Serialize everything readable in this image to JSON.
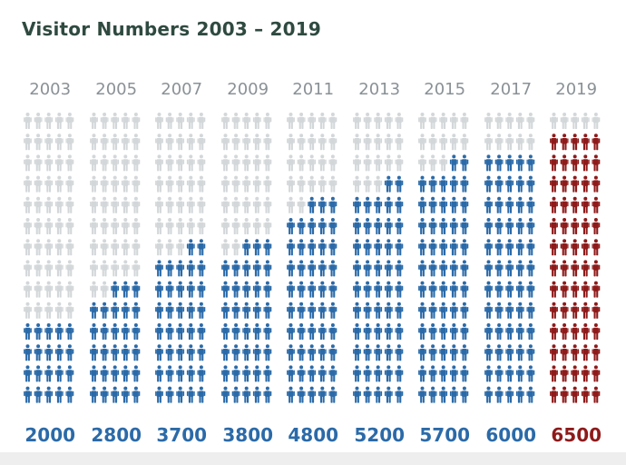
{
  "chart_data": {
    "type": "pictograph",
    "title": "Visitor Numbers 2003 – 2019",
    "categories": [
      "2003",
      "2005",
      "2007",
      "2009",
      "2011",
      "2013",
      "2015",
      "2017",
      "2019"
    ],
    "values": [
      2000,
      2800,
      3700,
      3800,
      4800,
      5200,
      5700,
      6000,
      6500
    ],
    "value_labels": [
      "2000",
      "2800",
      "3700",
      "3800",
      "4800",
      "5200",
      "5700",
      "6000",
      "6500"
    ],
    "icon_value": 100,
    "icons_per_row": 5,
    "icon_rows": 14,
    "highlight_index": 8,
    "colors": {
      "filled": "#2b6aa8",
      "empty": "#d3d7d9",
      "highlight": "#8e1a1a",
      "label_blue": "#2b6aa8",
      "label_highlight": "#8e1a1a",
      "year_label": "#8a9196",
      "title": "#2f4a40"
    }
  }
}
